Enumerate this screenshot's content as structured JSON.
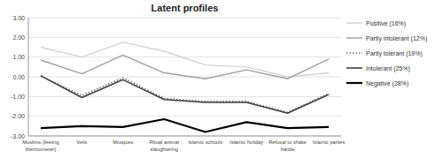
{
  "chart_data": {
    "type": "line",
    "title": "Latent profiles",
    "categories": [
      "Muslims (feeling\nthermometer)",
      "Veils",
      "Mosques",
      "Ritual animal\nslaughtering",
      "Islamic schools",
      "Islamic holiday",
      "Refusal to shake\nhands",
      "Islamic parties"
    ],
    "series": [
      {
        "name": "Positive (16%)",
        "color": "#d3d3d3",
        "line_style": "solid",
        "values": [
          1.5,
          1.0,
          1.75,
          1.3,
          0.6,
          0.5,
          0.0,
          0.2
        ]
      },
      {
        "name": "Partly intolerant (12%)",
        "color": "#a0a0a0",
        "line_style": "solid",
        "values": [
          0.85,
          0.15,
          1.1,
          0.2,
          -0.1,
          0.35,
          -0.1,
          0.9
        ]
      },
      {
        "name": "Partly tolerant (19%)",
        "color": "#707070",
        "line_style": "dotted",
        "values": [
          0.05,
          -0.95,
          -0.05,
          -1.1,
          -1.25,
          -1.25,
          -1.8,
          -0.85
        ]
      },
      {
        "name": "Intolerant (25%)",
        "color": "#404040",
        "line_style": "solid",
        "values": [
          0.05,
          -1.05,
          -0.15,
          -1.15,
          -1.3,
          -1.3,
          -1.85,
          -0.9
        ]
      },
      {
        "name": "Negative (28%)",
        "color": "#000000",
        "line_style": "solid",
        "values": [
          -2.6,
          -2.5,
          -2.55,
          -2.15,
          -2.8,
          -2.3,
          -2.6,
          -2.55
        ]
      }
    ],
    "ylim": [
      -3.0,
      3.0
    ],
    "yticks": [
      {
        "value": -3.0,
        "label": "-3.00"
      },
      {
        "value": -2.0,
        "label": "-2.00"
      },
      {
        "value": -1.0,
        "label": "-1.00"
      },
      {
        "value": 0.0,
        "label": "0.00"
      },
      {
        "value": 1.0,
        "label": "1.00"
      },
      {
        "value": 2.0,
        "label": "2.00"
      },
      {
        "value": 3.0,
        "label": "3.00"
      }
    ],
    "grid": true,
    "legend": "right"
  }
}
